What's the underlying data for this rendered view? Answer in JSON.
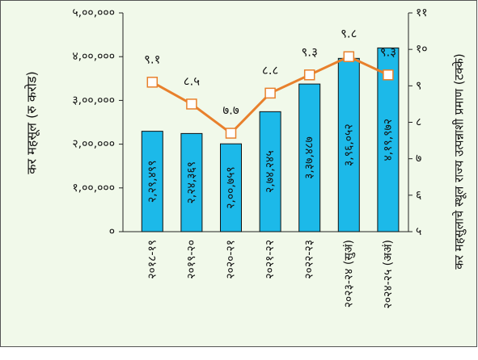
{
  "chart_data": {
    "type": "bar_line",
    "categories": [
      "२०१८-१९",
      "२०१९-२०",
      "२०२०-२१",
      "२०२१-२२",
      "२०२२-२३",
      "२०२३-२४ (सुअं)",
      "२०२४-२५ (अअं)"
    ],
    "series": [
      {
        "type": "bar",
        "color": "#1cb9e9",
        "values": [
          229499,
          224369,
          200759,
          274245,
          337487,
          396052,
          419972
        ],
        "value_labels": [
          "२,२९,४९९",
          "२,२४,३६९",
          "२,००,७५९",
          "२,७४,२४५",
          "३,३७,४८७",
          "३,९६,०५२",
          "४,१९,९७२"
        ]
      },
      {
        "type": "line",
        "axis": "y2",
        "color": "#e8802c",
        "values": [
          9.1,
          8.5,
          7.7,
          8.8,
          9.3,
          9.8,
          9.3
        ],
        "value_labels": [
          "९.१",
          "८.५",
          "७.७",
          "८.८",
          "९.३",
          "९.८",
          "९.३"
        ]
      }
    ],
    "ylabel": "कर महसूल (रु करोड)",
    "y2label": "कर महसुलाचे स्थूल राज्य उत्पन्नाशी प्रमाण (टक्के)",
    "ylim": [
      0,
      500000
    ],
    "yticks": [
      {
        "value": 0,
        "label": "०"
      },
      {
        "value": 100000,
        "label": "१,००,०००"
      },
      {
        "value": 200000,
        "label": "२,००,०००"
      },
      {
        "value": 300000,
        "label": "३,००,०००"
      },
      {
        "value": 400000,
        "label": "४,००,०००"
      },
      {
        "value": 500000,
        "label": "५,००,०००"
      }
    ],
    "y2lim": [
      5,
      11
    ],
    "y2ticks": [
      {
        "value": 5,
        "label": "५"
      },
      {
        "value": 6,
        "label": "६"
      },
      {
        "value": 7,
        "label": "७"
      },
      {
        "value": 8,
        "label": "८"
      },
      {
        "value": 9,
        "label": "९"
      },
      {
        "value": 10,
        "label": "१०"
      },
      {
        "value": 11,
        "label": "११"
      }
    ]
  }
}
